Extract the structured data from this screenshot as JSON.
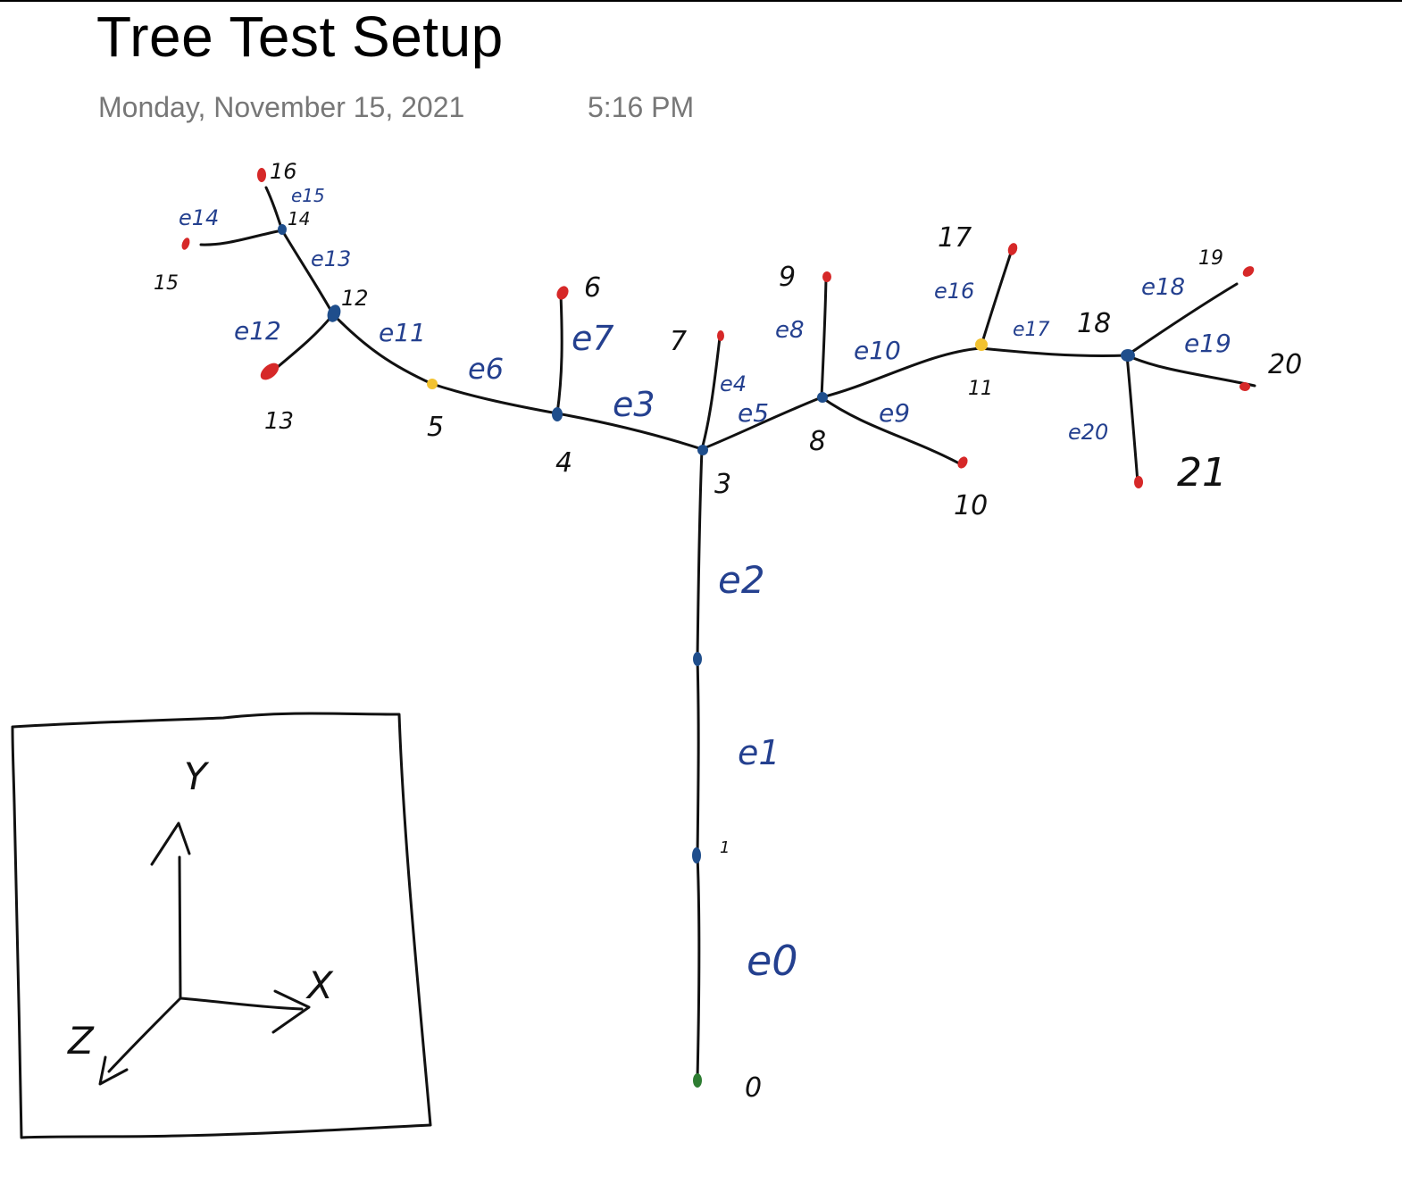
{
  "page": {
    "title": "Tree Test Setup",
    "date": "Monday, November 15, 2021",
    "time": "5:16 PM"
  },
  "colors": {
    "root": "#2e7d32",
    "internal": "#1f4e8c",
    "junction": "#f2c230",
    "leaf": "#d62828",
    "edge_label": "#24408f",
    "ink": "#111111"
  },
  "diagram": {
    "nodes": [
      {
        "id": "n0",
        "label": "0",
        "kind": "root"
      },
      {
        "id": "n1",
        "label": "1",
        "kind": "internal"
      },
      {
        "id": "n2",
        "label": "",
        "kind": "internal"
      },
      {
        "id": "n3",
        "label": "3",
        "kind": "internal"
      },
      {
        "id": "n4",
        "label": "4",
        "kind": "internal"
      },
      {
        "id": "n5",
        "label": "5",
        "kind": "junction"
      },
      {
        "id": "n6",
        "label": "6",
        "kind": "leaf"
      },
      {
        "id": "n7",
        "label": "7",
        "kind": "leaf"
      },
      {
        "id": "n8",
        "label": "8",
        "kind": "internal"
      },
      {
        "id": "n9",
        "label": "9",
        "kind": "leaf"
      },
      {
        "id": "n10",
        "label": "10",
        "kind": "leaf"
      },
      {
        "id": "n11",
        "label": "11",
        "kind": "junction"
      },
      {
        "id": "n12",
        "label": "12",
        "kind": "internal"
      },
      {
        "id": "n13",
        "label": "13",
        "kind": "leaf"
      },
      {
        "id": "n14",
        "label": "14",
        "kind": "internal"
      },
      {
        "id": "n15",
        "label": "15",
        "kind": "leaf"
      },
      {
        "id": "n16",
        "label": "16",
        "kind": "leaf"
      },
      {
        "id": "n17",
        "label": "17",
        "kind": "leaf"
      },
      {
        "id": "n18",
        "label": "18",
        "kind": "internal"
      },
      {
        "id": "n19",
        "label": "19",
        "kind": "leaf"
      },
      {
        "id": "n20",
        "label": "20",
        "kind": "leaf"
      },
      {
        "id": "n21",
        "label": "21",
        "kind": "leaf"
      }
    ],
    "edges": [
      {
        "id": "e0",
        "label": "e0"
      },
      {
        "id": "e1",
        "label": "e1"
      },
      {
        "id": "e2",
        "label": "e2"
      },
      {
        "id": "e3",
        "label": "e3"
      },
      {
        "id": "e4",
        "label": "e4"
      },
      {
        "id": "e5",
        "label": "e5"
      },
      {
        "id": "e6",
        "label": "e6"
      },
      {
        "id": "e7",
        "label": "e7"
      },
      {
        "id": "e8",
        "label": "e8"
      },
      {
        "id": "e9",
        "label": "e9"
      },
      {
        "id": "e10",
        "label": "e10"
      },
      {
        "id": "e11",
        "label": "e11"
      },
      {
        "id": "e12",
        "label": "e12"
      },
      {
        "id": "e13",
        "label": "e13"
      },
      {
        "id": "e14",
        "label": "e14"
      },
      {
        "id": "e15",
        "label": "e15"
      },
      {
        "id": "e16",
        "label": "e16"
      },
      {
        "id": "e17",
        "label": "e17"
      },
      {
        "id": "e18",
        "label": "e18"
      },
      {
        "id": "e19",
        "label": "e19"
      },
      {
        "id": "e20",
        "label": "e20"
      }
    ]
  },
  "axes_box": {
    "y_label": "Y",
    "x_label": "X",
    "z_label": "Z"
  }
}
